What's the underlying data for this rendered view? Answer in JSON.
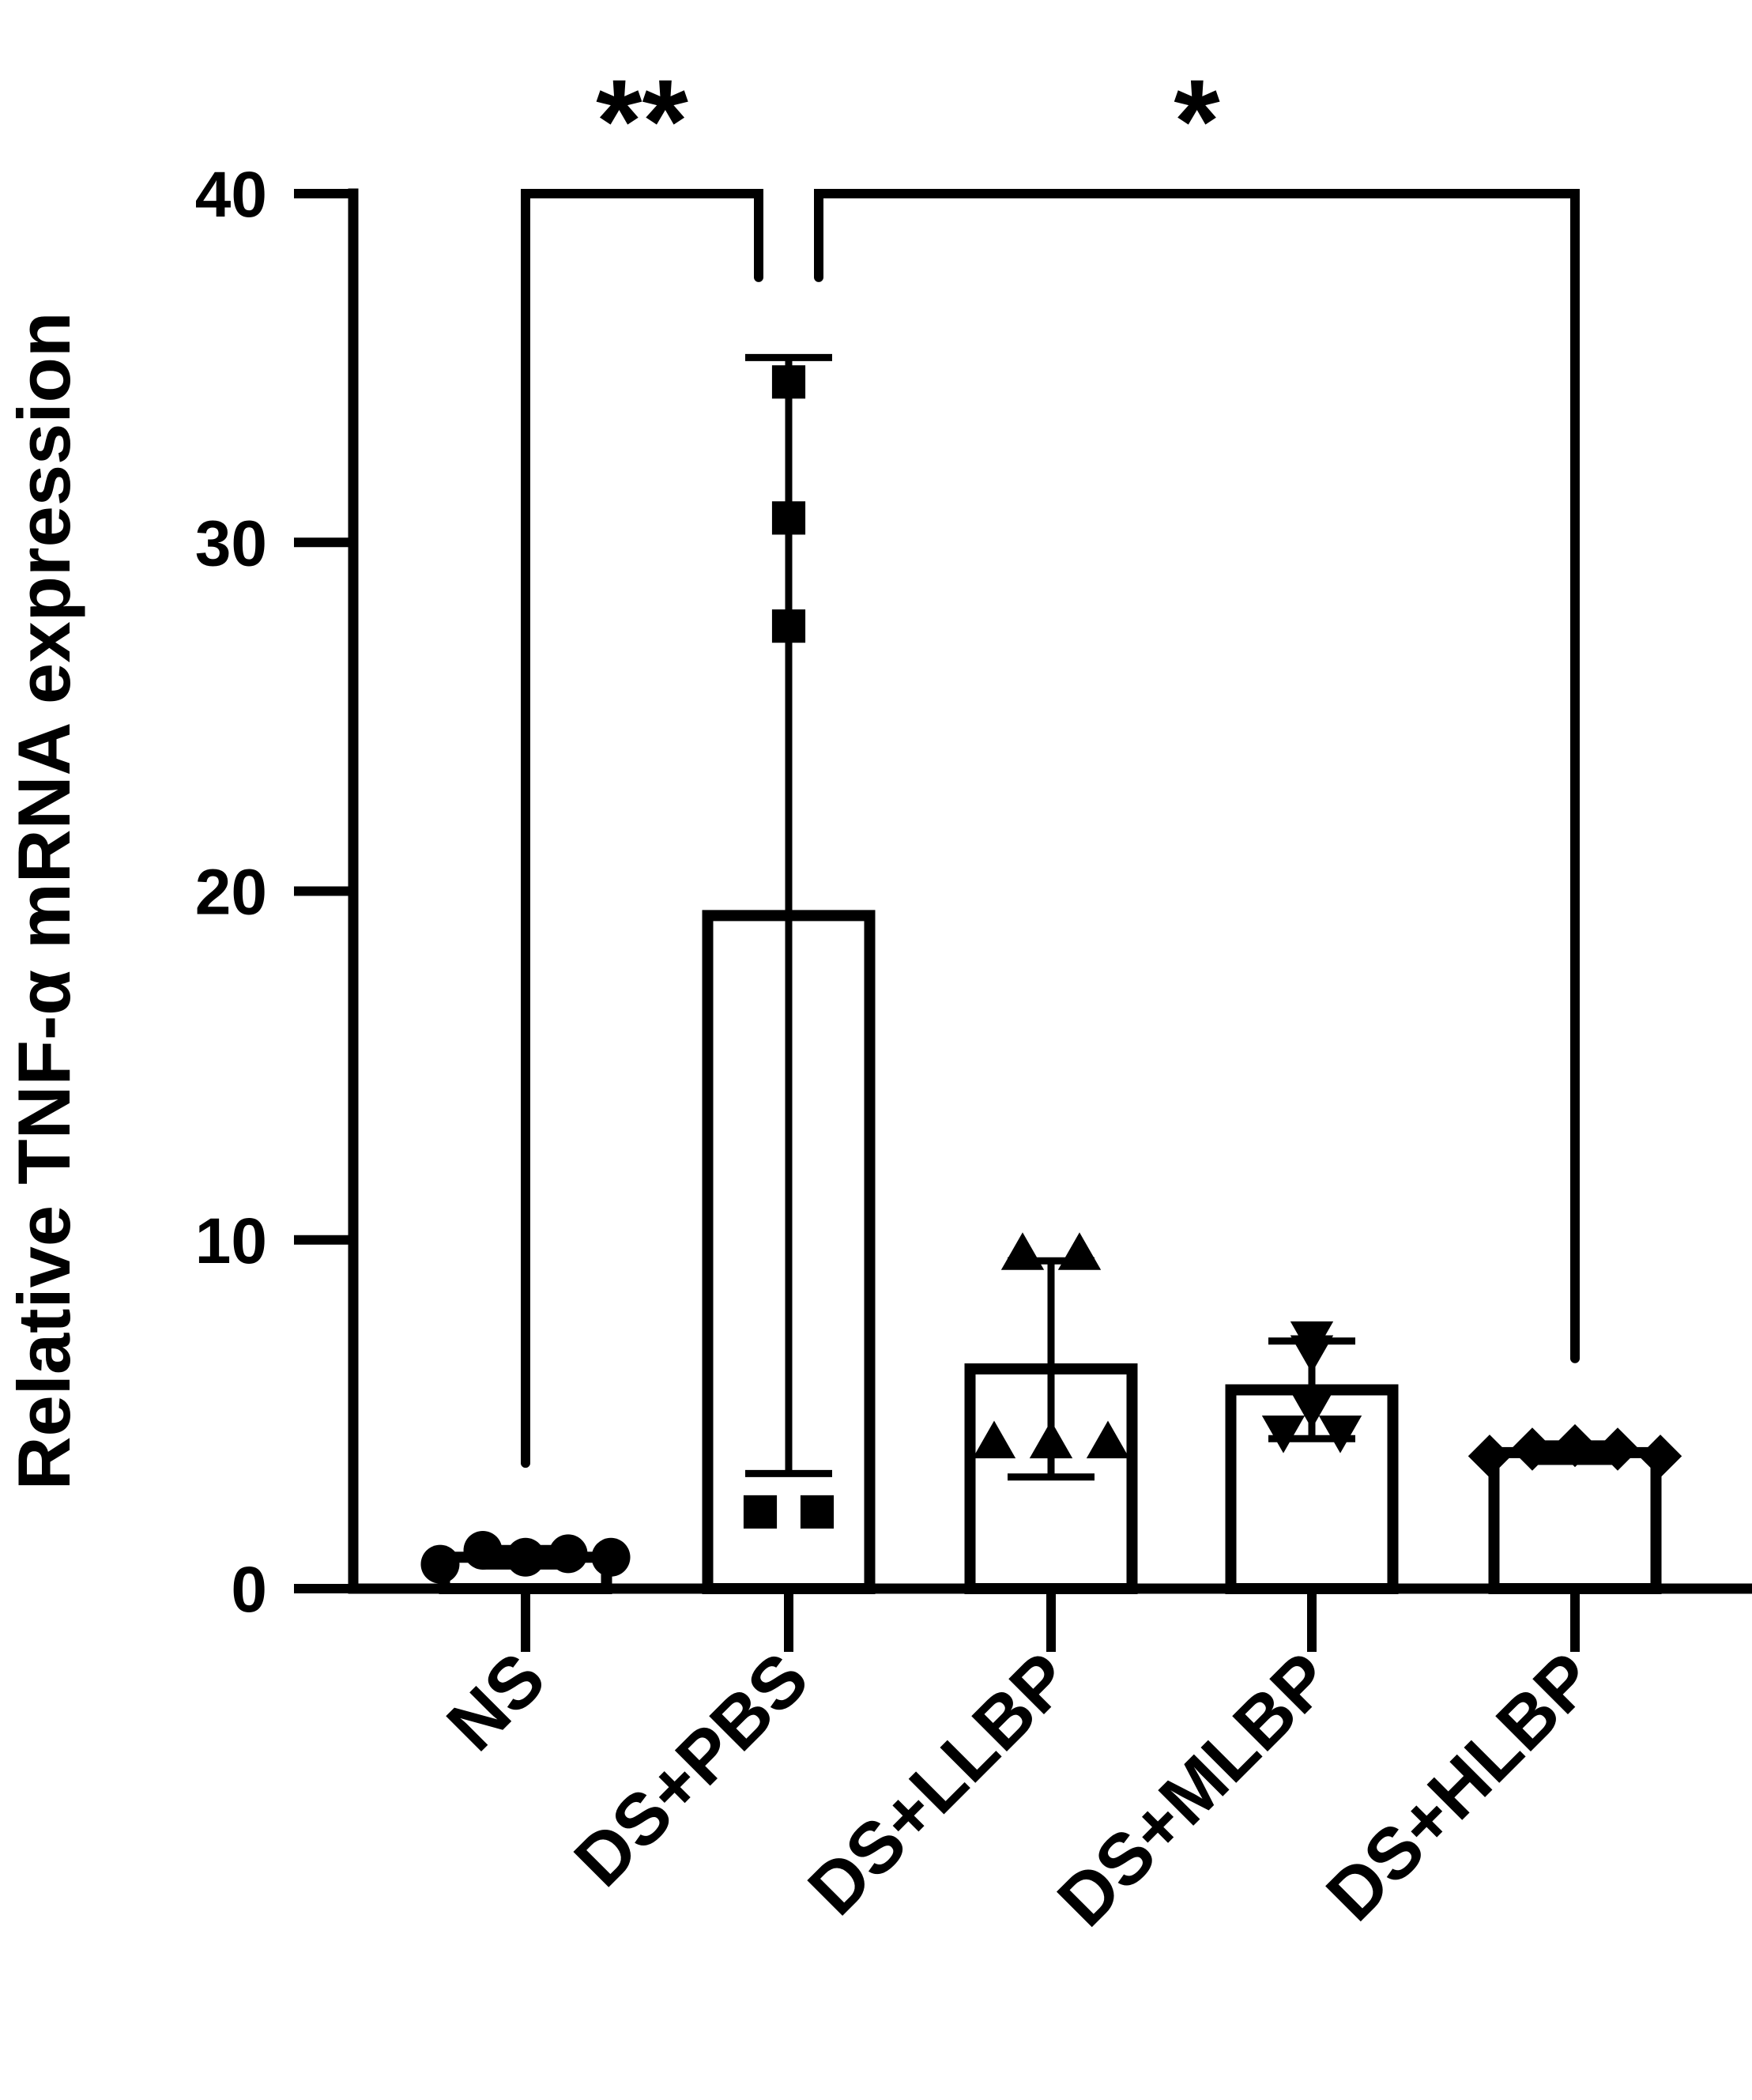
{
  "chart_data": {
    "type": "bar",
    "title": "",
    "xlabel": "",
    "ylabel": "Relative TNF-α mRNA expression",
    "ylim": [
      0,
      40
    ],
    "yticks": [
      0,
      10,
      20,
      30,
      40
    ],
    "ytick_labels": [
      "0",
      "10",
      "20",
      "30",
      "40"
    ],
    "grid": false,
    "legend": "none",
    "categories": [
      "NS",
      "DS+PBS",
      "DS+LLBP",
      "DS+MLBP",
      "DS+HLBP"
    ],
    "bars": [
      {
        "category": "NS",
        "mean": 0.9,
        "sd": 0.25,
        "marker": "circle",
        "points": [
          0.7,
          1.1,
          0.9,
          1.0,
          0.9
        ]
      },
      {
        "category": "DS+PBS",
        "mean": 19.3,
        "sd": 16.0,
        "marker": "square",
        "points": [
          2.2,
          2.2,
          27.6,
          30.7,
          34.6
        ]
      },
      {
        "category": "DS+LLBP",
        "mean": 6.3,
        "sd": 3.1,
        "marker": "triangle-up",
        "points": [
          4.2,
          4.2,
          4.2,
          9.6,
          9.6
        ]
      },
      {
        "category": "DS+MLBP",
        "mean": 5.7,
        "sd": 1.4,
        "marker": "triangle-down",
        "points": [
          4.5,
          4.5,
          5.2,
          6.8,
          7.2
        ]
      },
      {
        "category": "DS+HLBP",
        "mean": 3.9,
        "sd": 0.25,
        "marker": "diamond",
        "points": [
          3.8,
          4.0,
          4.1,
          4.0,
          3.8
        ]
      }
    ],
    "comparisons": [
      {
        "from": "NS",
        "to": "DS+PBS",
        "label": "**"
      },
      {
        "from": "DS+PBS",
        "to": "DS+HLBP",
        "label": "*"
      }
    ],
    "colors": {
      "bar_fill": "#ffffff",
      "stroke": "#000000",
      "background": "#ffffff"
    }
  }
}
